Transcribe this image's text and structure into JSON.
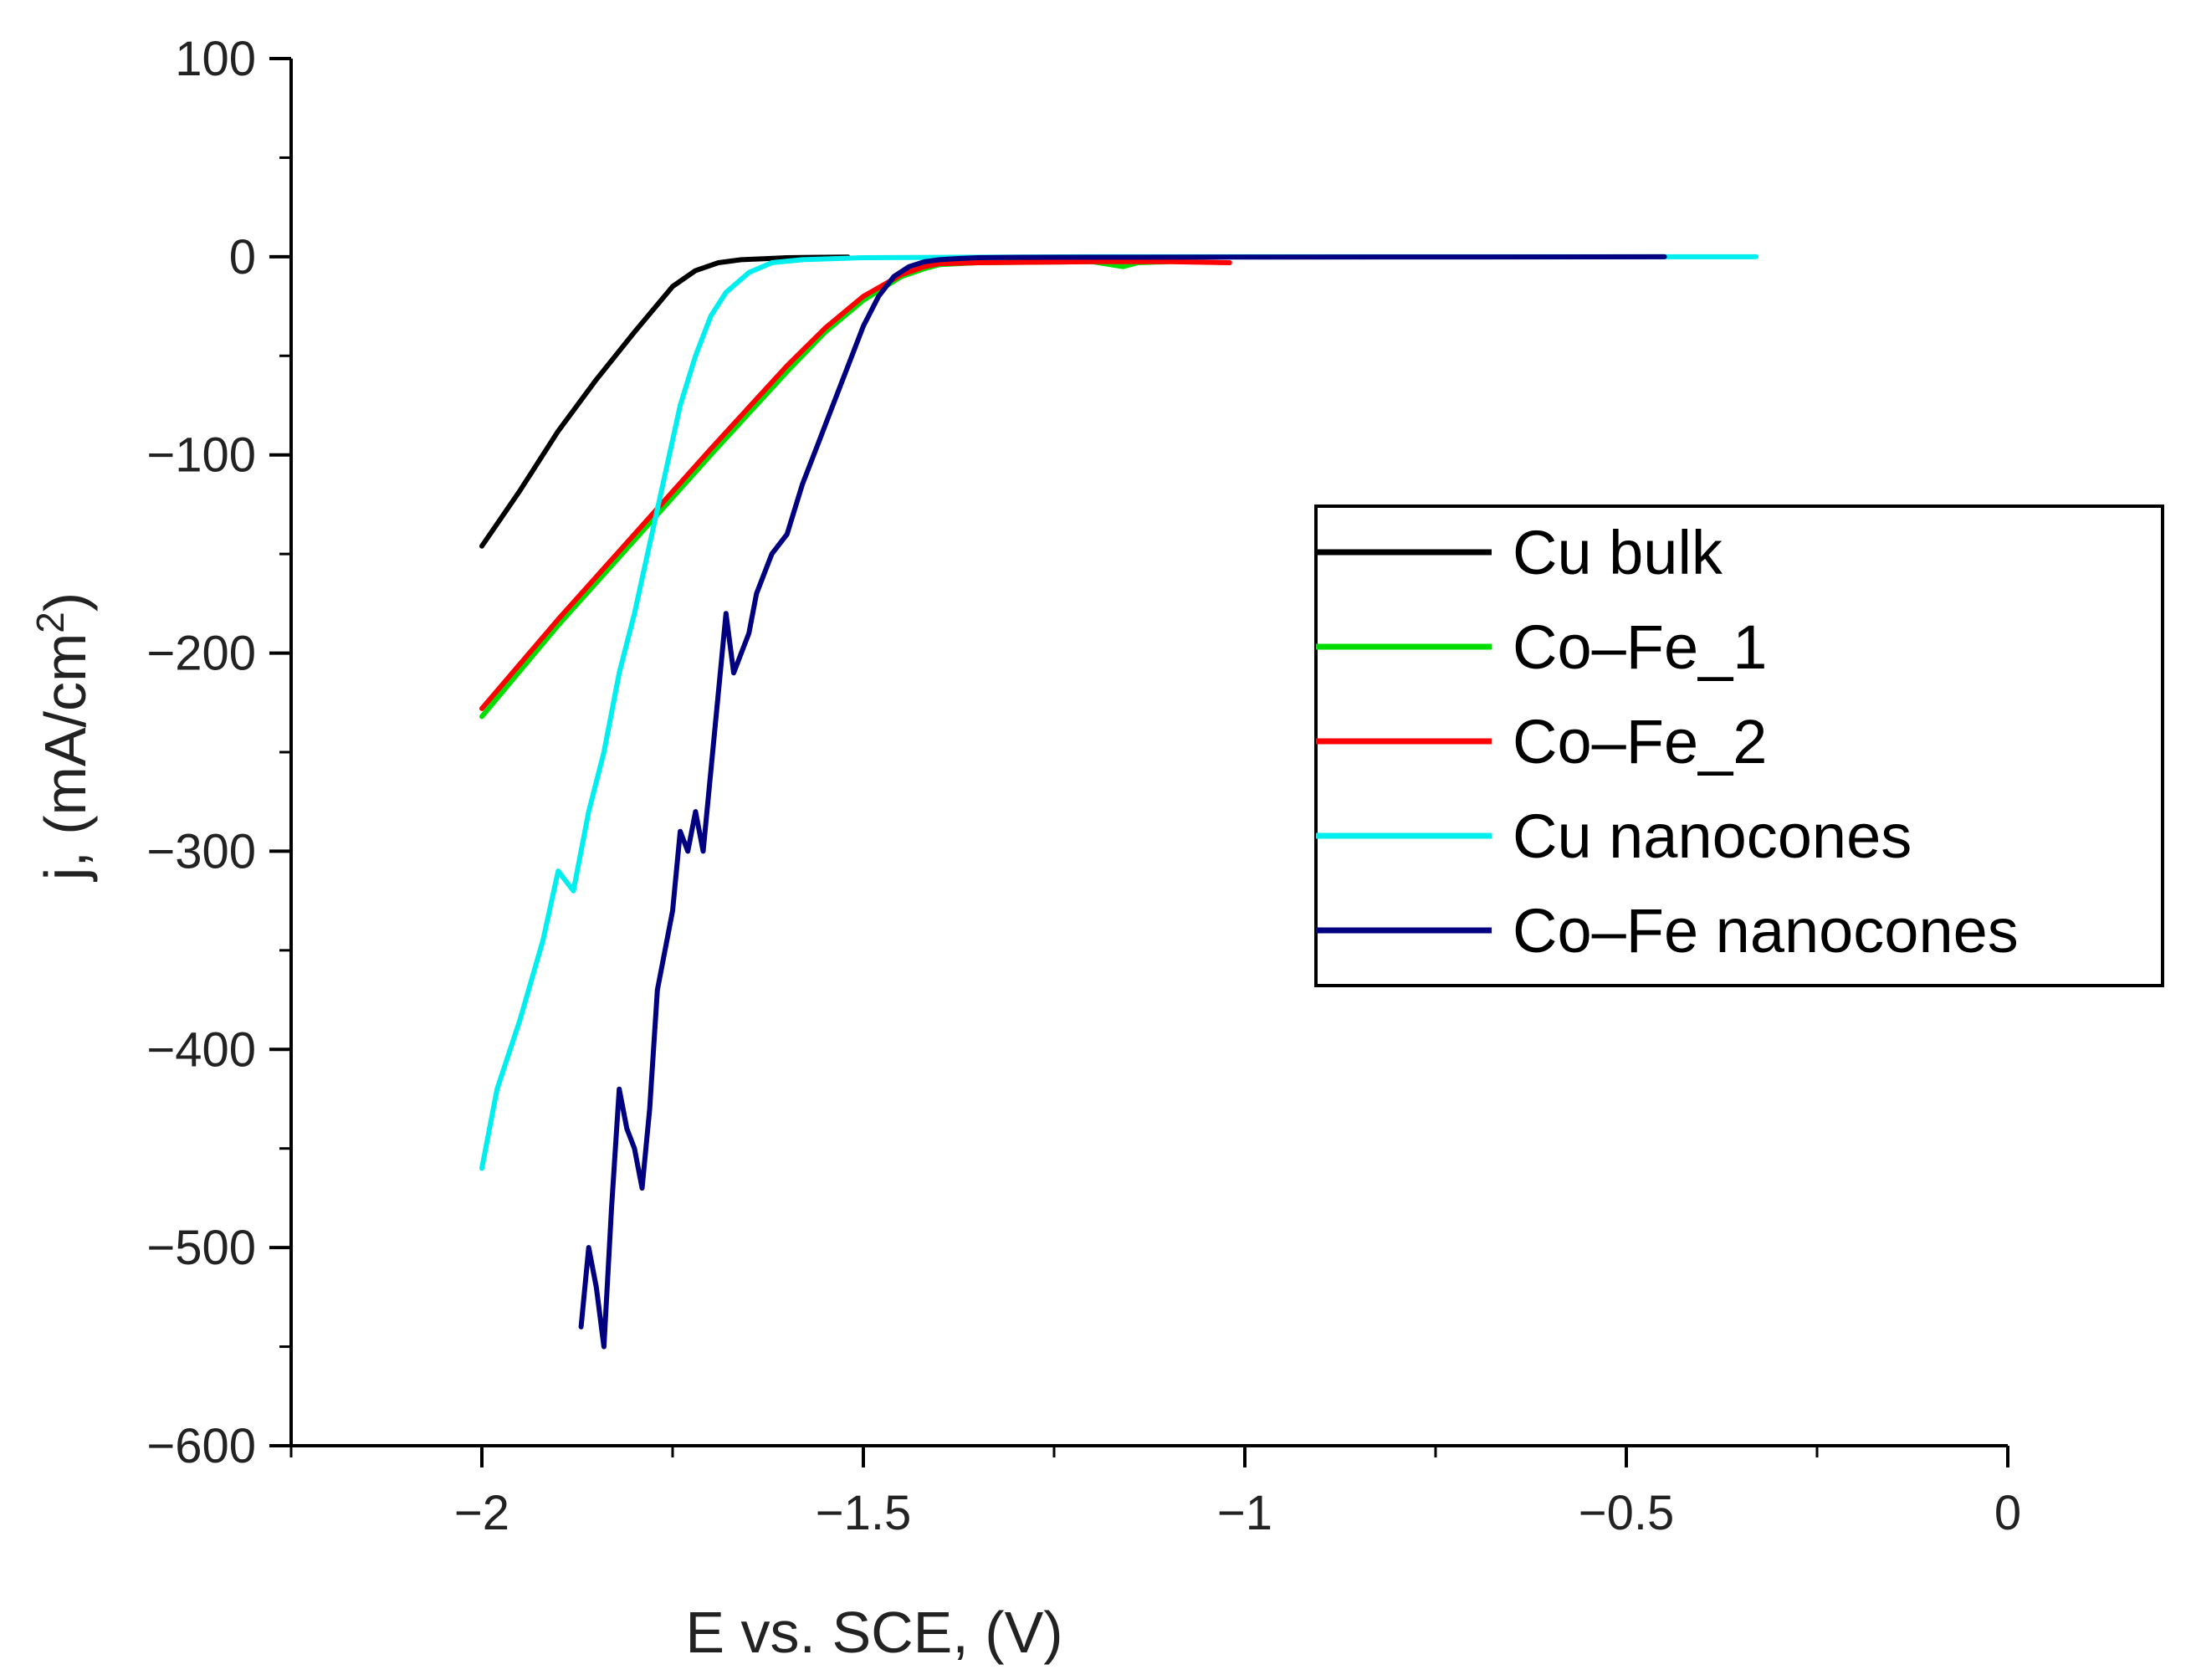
{
  "chart_data": {
    "type": "line",
    "title": "",
    "xlabel": "E vs. SCE, (V)",
    "ylabel_prefix": "j, (mA/cm",
    "ylabel_sup": "2",
    "ylabel_suffix": ")",
    "xlim": [
      -2.25,
      0
    ],
    "ylim": [
      -600,
      100
    ],
    "grid": false,
    "legend_position": "right",
    "x_ticks": [
      -2,
      -1.5,
      -1,
      -0.5,
      0
    ],
    "x_tick_labels": [
      "−2",
      "−1.5",
      "−1",
      "−0.5",
      "0"
    ],
    "y_ticks": [
      100,
      0,
      -100,
      -200,
      -300,
      -400,
      -500,
      -600
    ],
    "y_tick_labels": [
      "100",
      "0",
      "−100",
      "−200",
      "−300",
      "−400",
      "−500",
      "−600"
    ],
    "series": [
      {
        "name": "Cu bulk",
        "color": "#000000",
        "x": [
          -2.0,
          -1.95,
          -1.9,
          -1.85,
          -1.8,
          -1.75,
          -1.72,
          -1.69,
          -1.66,
          -1.63,
          -1.6,
          -1.57,
          -1.52
        ],
        "y": [
          -146,
          -118,
          -88,
          -62,
          -38,
          -15,
          -7,
          -3,
          -1.5,
          -1,
          -0.5,
          -0.3,
          -0.2
        ]
      },
      {
        "name": "Co–Fe_1",
        "color": "#00dd00",
        "x": [
          -2.0,
          -1.9,
          -1.8,
          -1.7,
          -1.6,
          -1.55,
          -1.5,
          -1.45,
          -1.42,
          -1.4,
          -1.35,
          -1.2,
          -1.16,
          -1.14,
          -1.1
        ],
        "y": [
          -232,
          -186,
          -143,
          -100,
          -58,
          -38,
          -22,
          -10,
          -6,
          -4,
          -3,
          -2.5,
          -5,
          -3,
          -2.5
        ]
      },
      {
        "name": "Co–Fe_2",
        "color": "#ff0000",
        "x": [
          -2.0,
          -1.9,
          -1.8,
          -1.7,
          -1.6,
          -1.55,
          -1.5,
          -1.45,
          -1.42,
          -1.4,
          -1.35,
          -1.2,
          -1.1,
          -1.02
        ],
        "y": [
          -228,
          -183,
          -140,
          -97,
          -55,
          -36,
          -20,
          -9,
          -5,
          -3.5,
          -3,
          -2.5,
          -2.5,
          -3
        ]
      },
      {
        "name": "Cu nanocones",
        "color": "#00eeee",
        "x": [
          -2.0,
          -1.98,
          -1.95,
          -1.92,
          -1.9,
          -1.88,
          -1.86,
          -1.84,
          -1.82,
          -1.8,
          -1.78,
          -1.76,
          -1.74,
          -1.72,
          -1.7,
          -1.68,
          -1.65,
          -1.62,
          -1.58,
          -1.5,
          -1.2,
          -0.8,
          -0.5,
          -0.33
        ],
        "y": [
          -460,
          -420,
          -385,
          -345,
          -310,
          -320,
          -280,
          -250,
          -210,
          -180,
          -145,
          -110,
          -75,
          -50,
          -30,
          -18,
          -8,
          -3,
          -1.5,
          -0.5,
          0,
          0,
          0,
          0
        ]
      },
      {
        "name": "Co–Fe nanocones",
        "color": "#000080",
        "x": [
          -1.87,
          -1.86,
          -1.85,
          -1.84,
          -1.83,
          -1.82,
          -1.81,
          -1.8,
          -1.79,
          -1.78,
          -1.77,
          -1.76,
          -1.75,
          -1.74,
          -1.73,
          -1.72,
          -1.71,
          -1.7,
          -1.69,
          -1.68,
          -1.67,
          -1.66,
          -1.65,
          -1.64,
          -1.62,
          -1.6,
          -1.58,
          -1.56,
          -1.54,
          -1.52,
          -1.5,
          -1.48,
          -1.46,
          -1.44,
          -1.42,
          -1.4,
          -1.38,
          -1.35,
          -1.3,
          -1.0,
          -0.7,
          -0.45
        ],
        "y": [
          -540,
          -500,
          -520,
          -550,
          -480,
          -420,
          -440,
          -450,
          -470,
          -430,
          -370,
          -350,
          -330,
          -290,
          -300,
          -280,
          -300,
          -260,
          -220,
          -180,
          -210,
          -200,
          -190,
          -170,
          -150,
          -140,
          -115,
          -95,
          -75,
          -55,
          -35,
          -20,
          -10,
          -5,
          -2.5,
          -1.5,
          -1,
          -0.5,
          -0.3,
          -0.2,
          -0.1,
          0
        ]
      }
    ]
  }
}
